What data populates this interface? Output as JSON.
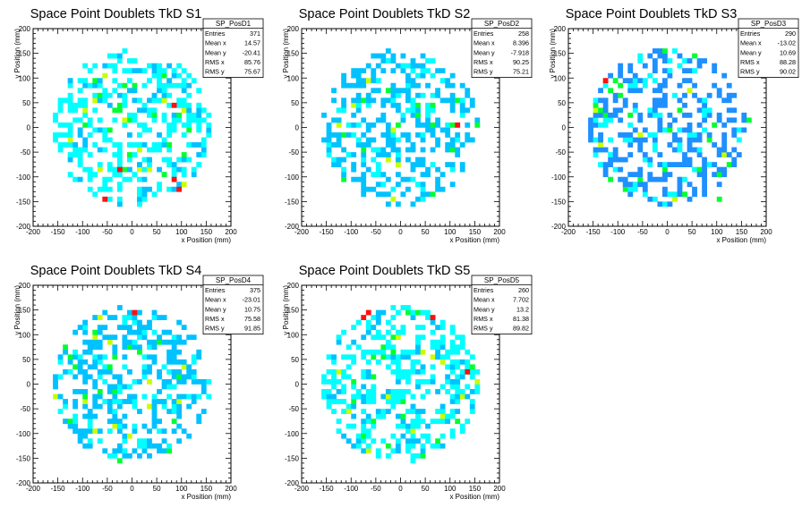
{
  "chart_data": [
    {
      "type": "heatmap",
      "title": "Space Point Doublets TkD S1",
      "xlabel": "x Position (mm)",
      "ylabel": "y Position (mm)",
      "xlim": [
        -200,
        200
      ],
      "ylim": [
        -200,
        200
      ],
      "x_ticks": [
        -200,
        -150,
        -100,
        -50,
        0,
        50,
        100,
        150,
        200
      ],
      "y_ticks": [
        -200,
        -150,
        -100,
        -50,
        0,
        50,
        100,
        150,
        200
      ],
      "stats": {
        "name": "SP_PosD1",
        "rows": [
          {
            "label": "Entries",
            "value": "371"
          },
          {
            "label": "Mean x",
            "value": "14.57"
          },
          {
            "label": "Mean y",
            "value": "-20.41"
          },
          {
            "label": "RMS x",
            "value": "85.76"
          },
          {
            "label": "RMS y",
            "value": "75.67"
          }
        ]
      },
      "palette": [
        "#00ffff",
        "#00c2ff",
        "#00ff30",
        "#c8ff00",
        "#ff1010"
      ],
      "dominant": 0,
      "seed": 11,
      "hot_cells": [
        [
          80,
          40,
          4
        ],
        [
          -30,
          -90,
          4
        ],
        [
          85,
          -110,
          4
        ],
        [
          -60,
          -145,
          4
        ],
        [
          95,
          -130,
          4
        ],
        [
          -70,
          -85,
          3
        ],
        [
          40,
          25,
          2
        ],
        [
          -20,
          10,
          3
        ]
      ]
    },
    {
      "type": "heatmap",
      "title": "Space Point Doublets TkD S2",
      "xlabel": "x Position (mm)",
      "ylabel": "y Position (mm)",
      "xlim": [
        -200,
        200
      ],
      "ylim": [
        -200,
        200
      ],
      "x_ticks": [
        -200,
        -150,
        -100,
        -50,
        0,
        50,
        100,
        150,
        200
      ],
      "y_ticks": [
        -200,
        -150,
        -100,
        -50,
        0,
        50,
        100,
        150,
        200
      ],
      "stats": {
        "name": "SP_PosD2",
        "rows": [
          {
            "label": "Entries",
            "value": "258"
          },
          {
            "label": "Mean x",
            "value": "8.396"
          },
          {
            "label": "Mean y",
            "value": "-7.918"
          },
          {
            "label": "RMS x",
            "value": "90.25"
          },
          {
            "label": "RMS y",
            "value": "75.21"
          }
        ]
      },
      "palette": [
        "#00ffff",
        "#00c2ff",
        "#00ff30",
        "#c8ff00",
        "#ff1010"
      ],
      "dominant": 1,
      "seed": 23,
      "hot_cells": [
        [
          110,
          0,
          4
        ],
        [
          -20,
          -10,
          3
        ],
        [
          150,
          0,
          2
        ],
        [
          60,
          -140,
          2
        ]
      ]
    },
    {
      "type": "heatmap",
      "title": "Space Point Doublets TkD S3",
      "xlabel": "x Position (mm)",
      "ylabel": "y Position (mm)",
      "xlim": [
        -200,
        200
      ],
      "ylim": [
        -200,
        200
      ],
      "x_ticks": [
        -200,
        -150,
        -100,
        -50,
        0,
        50,
        100,
        150,
        200
      ],
      "y_ticks": [
        -200,
        -150,
        -100,
        -50,
        0,
        50,
        100,
        150,
        200
      ],
      "stats": {
        "name": "SP_PosD3",
        "rows": [
          {
            "label": "Entries",
            "value": "290"
          },
          {
            "label": "Mean x",
            "value": "-13.02"
          },
          {
            "label": "Mean y",
            "value": "10.69"
          },
          {
            "label": "RMS x",
            "value": "88.28"
          },
          {
            "label": "RMS y",
            "value": "90.02"
          }
        ]
      },
      "palette": [
        "#00ffff",
        "#1e90ff",
        "#00ff30",
        "#c8ff00",
        "#ff1010"
      ],
      "dominant": 1,
      "seed": 37,
      "hot_cells": [
        [
          -125,
          90,
          4
        ],
        [
          -10,
          150,
          2
        ],
        [
          160,
          15,
          2
        ],
        [
          -120,
          -110,
          2
        ],
        [
          100,
          -145,
          2
        ]
      ]
    },
    {
      "type": "heatmap",
      "title": "Space Point Doublets TkD S4",
      "xlabel": "x Position (mm)",
      "ylabel": "y Position (mm)",
      "xlim": [
        -200,
        200
      ],
      "ylim": [
        -200,
        200
      ],
      "x_ticks": [
        -200,
        -150,
        -100,
        -50,
        0,
        50,
        100,
        150,
        200
      ],
      "y_ticks": [
        -200,
        -150,
        -100,
        -50,
        0,
        50,
        100,
        150,
        200
      ],
      "stats": {
        "name": "SP_PosD4",
        "rows": [
          {
            "label": "Entries",
            "value": "375"
          },
          {
            "label": "Mean x",
            "value": "-23.01"
          },
          {
            "label": "Mean y",
            "value": "10.75"
          },
          {
            "label": "RMS x",
            "value": "75.58"
          },
          {
            "label": "RMS y",
            "value": "91.85"
          }
        ]
      },
      "palette": [
        "#00ffff",
        "#00c2ff",
        "#00ff30",
        "#c8ff00",
        "#ff1010"
      ],
      "dominant": 1,
      "seed": 41,
      "hot_cells": [
        [
          0,
          140,
          4
        ],
        [
          -80,
          -100,
          3
        ],
        [
          -10,
          -110,
          3
        ],
        [
          -140,
          70,
          2
        ],
        [
          -120,
          30,
          2
        ]
      ]
    },
    {
      "type": "heatmap",
      "title": "Space Point Doublets TkD S5",
      "xlabel": "x Position (mm)",
      "ylabel": "y Position (mm)",
      "xlim": [
        -200,
        200
      ],
      "ylim": [
        -200,
        200
      ],
      "x_ticks": [
        -200,
        -150,
        -100,
        -50,
        0,
        50,
        100,
        150,
        200
      ],
      "y_ticks": [
        -200,
        -150,
        -100,
        -50,
        0,
        50,
        100,
        150,
        200
      ],
      "stats": {
        "name": "SP_PosD5",
        "rows": [
          {
            "label": "Entries",
            "value": "260"
          },
          {
            "label": "Mean x",
            "value": "7.702"
          },
          {
            "label": "Mean y",
            "value": "13.2"
          },
          {
            "label": "RMS x",
            "value": "81.38"
          },
          {
            "label": "RMS y",
            "value": "89.82"
          }
        ]
      },
      "palette": [
        "#00ffff",
        "#00c2ff",
        "#00ff30",
        "#c8ff00",
        "#ff1010"
      ],
      "dominant": 0,
      "seed": 53,
      "hot_cells": [
        [
          -70,
          140,
          4
        ],
        [
          -80,
          130,
          4
        ],
        [
          60,
          130,
          4
        ],
        [
          130,
          20,
          4
        ],
        [
          -110,
          -60,
          3
        ],
        [
          80,
          40,
          3
        ],
        [
          -20,
          60,
          2
        ]
      ]
    }
  ]
}
